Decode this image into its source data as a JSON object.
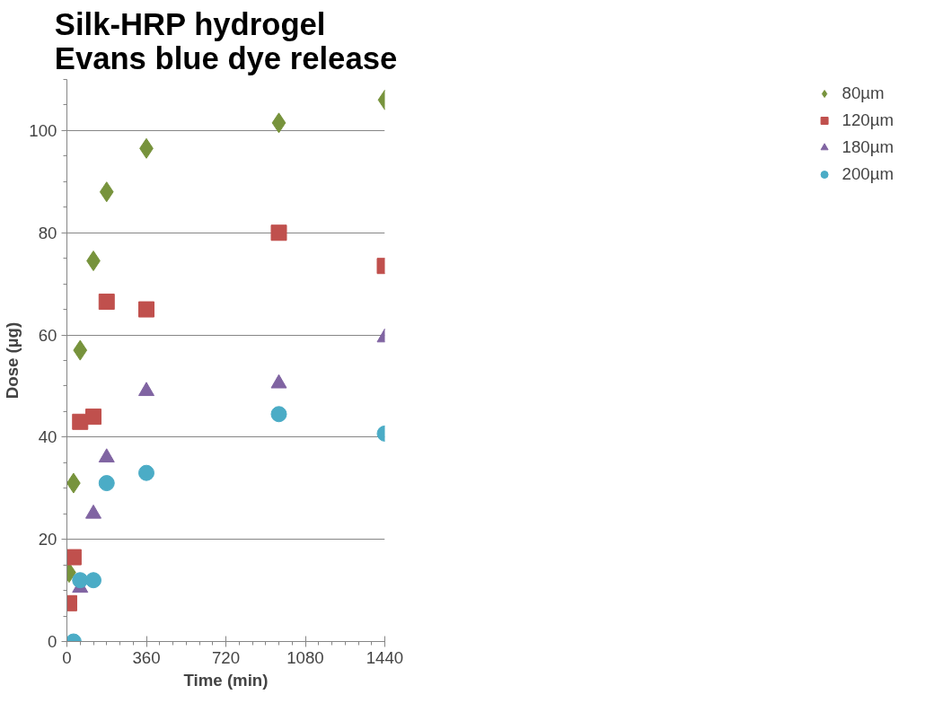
{
  "chart_data": {
    "type": "scatter",
    "title": "Silk-HRP hydrogel\nEvans blue dye release",
    "xlabel": "Time (min)",
    "ylabel": "Dose (µg)",
    "x": [
      10,
      30,
      60,
      120,
      180,
      360,
      960,
      1440
    ],
    "xlim": [
      0,
      1440
    ],
    "xticks": [
      0,
      360,
      720,
      1080,
      1440
    ],
    "ylim": [
      0,
      110
    ],
    "yticks": [
      0,
      20,
      40,
      60,
      80,
      100
    ],
    "grid": "y",
    "legend": "right",
    "series": [
      {
        "name": "80µm",
        "color": "#77933c",
        "marker": "diamond",
        "values": [
          13.5,
          31,
          57,
          74.5,
          88,
          96.5,
          101.5,
          106
        ]
      },
      {
        "name": "120µm",
        "color": "#c0504d",
        "marker": "square",
        "values": [
          7.5,
          16.5,
          43,
          44,
          66.5,
          65,
          80,
          73.5
        ]
      },
      {
        "name": "180µm",
        "color": "#8064a2",
        "marker": "triangle",
        "x": [
          60,
          120,
          180,
          360,
          960,
          1440
        ],
        "values": [
          10.5,
          25,
          36,
          49,
          50.5,
          59.5
        ]
      },
      {
        "name": "200µm",
        "color": "#4bacc6",
        "marker": "circle",
        "x": [
          30,
          60,
          120,
          180,
          360,
          960,
          1440
        ],
        "values": [
          0,
          12,
          12,
          31,
          33,
          44.5,
          40.7
        ]
      }
    ]
  }
}
